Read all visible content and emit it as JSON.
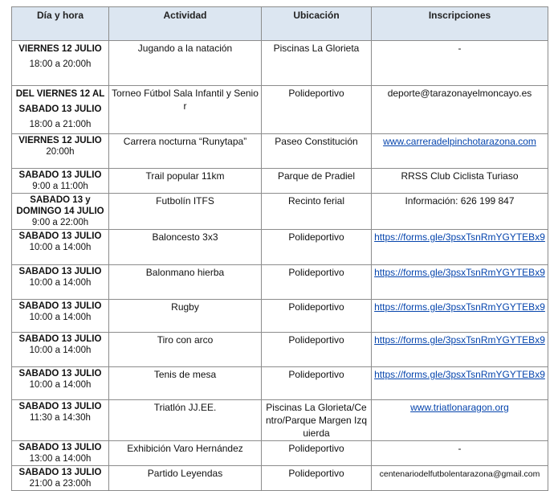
{
  "table": {
    "header": [
      "Día y hora",
      "Actividad",
      "Ubicación",
      "Inscripciones"
    ],
    "rows": [
      {
        "day": "VIERNES 12 JULIO",
        "time": "18:00 a 20:00h",
        "activity": "Jugando a la natación",
        "location": "Piscinas La Glorieta",
        "inscription": "-"
      },
      {
        "day": "DEL VIERNES 12 AL SABADO 13 JULIO",
        "time": "18:00 a 21:00h",
        "activity": "Torneo Fútbol Sala Infantil y Senior",
        "location": "Polideportivo",
        "inscription": "deporte@tarazonayelmoncayo.es"
      },
      {
        "day": "VIERNES 12 JULIO",
        "time": "20:00h",
        "activity": "Carrera nocturna “Runytapa”",
        "location": "Paseo Constitución",
        "inscription": "www.carreradelpinchotarazona.com"
      },
      {
        "day": "SABADO 13 JULIO",
        "time": "9:00 a 11:00h",
        "activity": "Trail popular 11km",
        "location": "Parque de Pradiel",
        "inscription": "RRSS  Club Ciclista Turiaso"
      },
      {
        "day": "SABADO 13 y DOMINGO 14 JULIO",
        "time": "9:00 a 22:00h",
        "activity": "Futbolín ITFS",
        "location": "Recinto ferial",
        "inscription": "Información: 626 199 847"
      },
      {
        "day": "SABADO 13 JULIO",
        "time": "10:00 a 14:00h",
        "activity": "Baloncesto 3x3",
        "location": "Polideportivo",
        "inscription": "https://forms.gle/3psxTsnRmYGYTEBx9"
      },
      {
        "day": "SABADO 13 JULIO",
        "time": "10:00 a 14:00h",
        "activity": "Balonmano hierba",
        "location": "Polideportivo",
        "inscription": "https://forms.gle/3psxTsnRmYGYTEBx9"
      },
      {
        "day": "SABADO 13 JULIO",
        "time": "10:00 a 14:00h",
        "activity": "Rugby",
        "location": "Polideportivo",
        "inscription": "https://forms.gle/3psxTsnRmYGYTEBx9"
      },
      {
        "day": "SABADO 13 JULIO",
        "time": "10:00 a 14:00h",
        "activity": "Tiro con arco",
        "location": "Polideportivo",
        "inscription": "https://forms.gle/3psxTsnRmYGYTEBx9"
      },
      {
        "day": "SABADO 13 JULIO",
        "time": "10:00 a 14:00h",
        "activity": "Tenis de mesa",
        "location": "Polideportivo",
        "inscription": "https://forms.gle/3psxTsnRmYGYTEBx9"
      },
      {
        "day": "SABADO 13 JULIO",
        "time": "11:30 a 14:30h",
        "activity": "Triatlón JJ.EE.",
        "location": "Piscinas La Glorieta/Centro/Parque Margen Izquierda",
        "inscription": "www.triatlonaragon.org"
      },
      {
        "day": "SABADO 13 JULIO",
        "time": "13:00 a 14:00h",
        "activity": "Exhibición Varo Hernández",
        "location": "Polideportivo",
        "inscription": "-"
      },
      {
        "day": "SABADO 13 JULIO",
        "time": "21:00 a 23:00h",
        "activity": "Partido Leyendas",
        "location": "Polideportivo",
        "inscription": "centenariodelfutbolentarazona@gmail.com"
      }
    ]
  }
}
